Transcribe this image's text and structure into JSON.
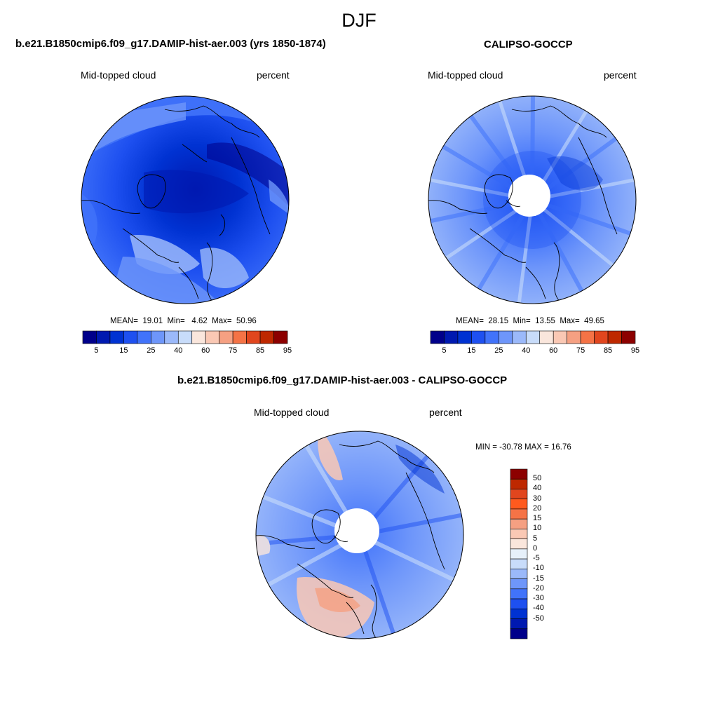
{
  "figure": {
    "season": "DJF",
    "colors": {
      "seq": [
        "#00008a",
        "#0019b0",
        "#0032d2",
        "#1e50f0",
        "#4173fa",
        "#6e96fa",
        "#9bb9fa",
        "#c8dcfa",
        "#fae6dc",
        "#fac8b4",
        "#f5a082",
        "#f57346",
        "#e1461e",
        "#be2800",
        "#8c0000"
      ],
      "diff": [
        "#00008a",
        "#0019b0",
        "#0032d2",
        "#1e50f0",
        "#4173fa",
        "#6e96fa",
        "#9bb9fa",
        "#c8dcfa",
        "#e6f0fa",
        "#fae6dc",
        "#fac8b4",
        "#f5a082",
        "#f57346",
        "#ff5a1e",
        "#e1461e",
        "#be2800",
        "#8c0000"
      ]
    }
  },
  "panels": [
    {
      "title": "b.e21.B1850cmip6.f09_g17.DAMIP-hist-aer.003 (yrs 1850-1874)",
      "left_label": "Mid-topped cloud",
      "right_label": "percent",
      "stats": {
        "mean_label": "MEAN=",
        "mean": "19.01",
        "min_label": "Min=",
        "min": "4.62",
        "max_label": "Max=",
        "max": "50.96"
      },
      "colorbar_ticks": [
        "5",
        "15",
        "25",
        "40",
        "60",
        "75",
        "85",
        "95"
      ]
    },
    {
      "title": "CALIPSO-GOCCP",
      "left_label": "Mid-topped cloud",
      "right_label": "percent",
      "stats": {
        "mean_label": "MEAN=",
        "mean": "28.15",
        "min_label": "Min=",
        "min": "13.55",
        "max_label": "Max=",
        "max": "49.65"
      },
      "colorbar_ticks": [
        "5",
        "15",
        "25",
        "40",
        "60",
        "75",
        "85",
        "95"
      ]
    },
    {
      "title": "b.e21.B1850cmip6.f09_g17.DAMIP-hist-aer.003 - CALIPSO-GOCCP",
      "left_label": "Mid-topped cloud",
      "right_label": "percent",
      "minmax": "MIN = -30.78 MAX =  16.76",
      "colorbar_ticks": [
        "50",
        "40",
        "30",
        "20",
        "15",
        "10",
        "5",
        "0",
        "-5",
        "-10",
        "-15",
        "-20",
        "-30",
        "-40",
        "-50"
      ]
    }
  ]
}
